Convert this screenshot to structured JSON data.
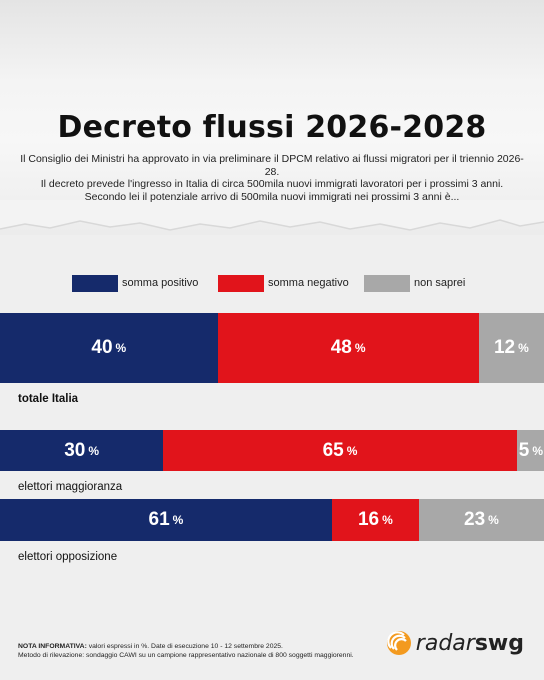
{
  "header": {
    "title": "Decreto flussi 2026-2028",
    "subtitle_lines": [
      "Il Consiglio dei Ministri ha approvato in via preliminare il DPCM relativo ai flussi migratori per il triennio 2026-28.",
      "Il decreto prevede l'ingresso in Italia di circa 500mila nuovi immigrati lavoratori per i prossimi 3 anni.",
      "Secondo lei il potenziale arrivo di 500mila nuovi immigrati nei prossimi 3 anni è..."
    ]
  },
  "colors": {
    "positive": "#152a6b",
    "negative": "#e1141b",
    "unsure": "#a8a8a8"
  },
  "chart_data": {
    "type": "bar",
    "orientation": "horizontal-stacked-100",
    "series": [
      {
        "name": "somma positivo",
        "values": [
          40,
          30,
          61
        ]
      },
      {
        "name": "somma negativo",
        "values": [
          48,
          65,
          16
        ]
      },
      {
        "name": "non saprei",
        "values": [
          12,
          5,
          23
        ]
      }
    ],
    "categories": [
      "totale Italia",
      "elettori maggioranza",
      "elettori opposizione"
    ],
    "unit": "%",
    "legend_position": "top"
  },
  "footer": {
    "note_label": "NOTA INFORMATIVA:",
    "note_text": " valori espressi in %. Date di esecuzione 10 - 12 settembre 2025.",
    "method_text": "Metodo di rilevazione: sondaggio CAWI su un campione rappresentativo nazionale di 800 soggetti maggiorenni.",
    "logo_light": "radar",
    "logo_heavy": "swg"
  }
}
